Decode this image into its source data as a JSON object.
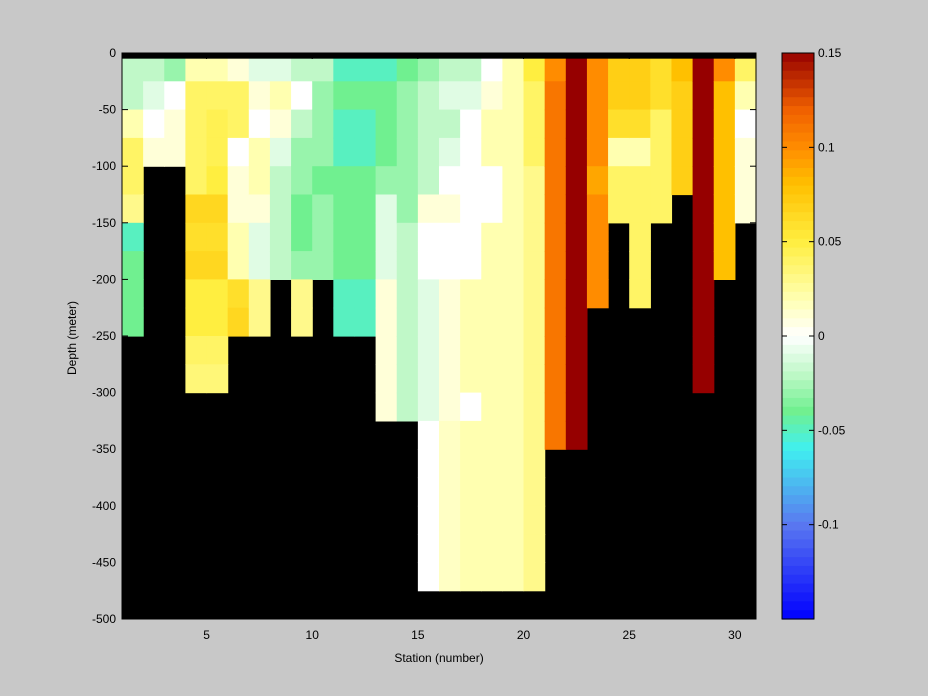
{
  "chart_data": {
    "type": "heatmap",
    "title": "",
    "xlabel": "Station (number)",
    "ylabel": "Depth (meter)",
    "xlim": [
      1,
      31
    ],
    "ylim": [
      -500,
      0
    ],
    "x_ticks": [
      5,
      10,
      15,
      20,
      25,
      30
    ],
    "y_ticks": [
      0,
      -50,
      -100,
      -150,
      -200,
      -250,
      -300,
      -350,
      -400,
      -450,
      -500
    ],
    "cell_height_m": 25,
    "nodata_color": "#000000",
    "colorbar": {
      "clim": [
        -0.15,
        0.15
      ],
      "ticks": [
        -0.1,
        -0.05,
        0,
        0.05,
        0.1,
        0.15
      ],
      "colormap": [
        [
          -0.15,
          "#0000ff"
        ],
        [
          -0.1,
          "#5a78f0"
        ],
        [
          -0.06,
          "#40f0f0"
        ],
        [
          -0.04,
          "#70f090"
        ],
        [
          -0.02,
          "#c0f8c8"
        ],
        [
          0,
          "#ffffff"
        ],
        [
          0.02,
          "#ffffb0"
        ],
        [
          0.05,
          "#ffee40"
        ],
        [
          0.08,
          "#ffc000"
        ],
        [
          0.1,
          "#ff8c00"
        ],
        [
          0.12,
          "#f06000"
        ],
        [
          0.15,
          "#960000"
        ]
      ]
    },
    "top_band": {
      "depth_range": [
        0,
        -5
      ],
      "color": "#000000"
    },
    "stations": [
      {
        "station": 1,
        "cells": [
          -0.02,
          -0.02,
          0.02,
          0.04,
          0.04,
          0.03,
          -0.05,
          -0.04,
          -0.04,
          -0.04
        ]
      },
      {
        "station": 2,
        "cells": [
          -0.02,
          -0.01,
          0.0,
          0.01
        ]
      },
      {
        "station": 3,
        "cells": [
          -0.03,
          0.0,
          0.01,
          0.01
        ]
      },
      {
        "station": 4,
        "cells": [
          0.02,
          0.04,
          0.04,
          0.04,
          0.04,
          0.065,
          0.06,
          0.065,
          0.05,
          0.05,
          0.04,
          0.035
        ]
      },
      {
        "station": 5,
        "cells": [
          0.02,
          0.04,
          0.045,
          0.045,
          0.05,
          0.065,
          0.06,
          0.065,
          0.05,
          0.05,
          0.04,
          0.035
        ]
      },
      {
        "station": 6,
        "cells": [
          0.01,
          0.04,
          0.04,
          0.0,
          0.01,
          0.01,
          0.02,
          0.02,
          0.06,
          0.065
        ]
      },
      {
        "station": 7,
        "cells": [
          -0.01,
          0.01,
          0.0,
          0.02,
          0.02,
          0.01,
          -0.01,
          -0.01,
          0.03,
          0.03
        ]
      },
      {
        "station": 8,
        "cells": [
          -0.01,
          0.02,
          0.01,
          -0.01,
          -0.02,
          -0.02,
          -0.02,
          -0.02
        ]
      },
      {
        "station": 9,
        "cells": [
          -0.02,
          0.0,
          -0.02,
          -0.03,
          -0.03,
          -0.04,
          -0.04,
          -0.03,
          0.03,
          0.03
        ]
      },
      {
        "station": 10,
        "cells": [
          -0.02,
          -0.03,
          -0.03,
          -0.03,
          -0.04,
          -0.03,
          -0.03,
          -0.03
        ]
      },
      {
        "station": 11,
        "cells": [
          -0.05,
          -0.04,
          -0.05,
          -0.05,
          -0.04,
          -0.04,
          -0.04,
          -0.04,
          -0.05,
          -0.05
        ]
      },
      {
        "station": 12,
        "cells": [
          -0.05,
          -0.04,
          -0.05,
          -0.05,
          -0.04,
          -0.04,
          -0.04,
          -0.04,
          -0.05,
          -0.05
        ]
      },
      {
        "station": 13,
        "cells": [
          -0.05,
          -0.04,
          -0.04,
          -0.04,
          -0.03,
          -0.01,
          -0.01,
          -0.01,
          0.01,
          0.01,
          0.01,
          0.01,
          0.01
        ]
      },
      {
        "station": 14,
        "cells": [
          -0.04,
          -0.03,
          -0.03,
          -0.03,
          -0.03,
          -0.03,
          -0.02,
          -0.02,
          -0.02,
          -0.02,
          -0.02,
          -0.02,
          -0.02
        ]
      },
      {
        "station": 15,
        "cells": [
          -0.03,
          -0.02,
          -0.02,
          -0.02,
          -0.02,
          0.01,
          0.0,
          0.0,
          -0.01,
          -0.01,
          -0.01,
          -0.01,
          -0.01,
          0.0,
          0.0,
          0.0,
          0.0,
          0.0,
          0.0
        ]
      },
      {
        "station": 16,
        "cells": [
          -0.02,
          -0.01,
          -0.02,
          -0.01,
          0.0,
          0.01,
          0.0,
          0.0,
          0.01,
          0.01,
          0.01,
          0.01,
          0.01,
          0.015,
          0.015,
          0.015,
          0.015,
          0.015,
          0.015
        ]
      },
      {
        "station": 17,
        "cells": [
          -0.02,
          -0.01,
          0.0,
          0.0,
          0.0,
          0.0,
          0.0,
          0.0,
          0.02,
          0.02,
          0.02,
          0.02,
          0.0,
          0.02,
          0.02,
          0.02,
          0.02,
          0.02,
          0.02
        ]
      },
      {
        "station": 18,
        "cells": [
          0.0,
          0.01,
          0.02,
          0.02,
          0.0,
          0.0,
          0.02,
          0.02,
          0.02,
          0.02,
          0.02,
          0.02,
          0.02,
          0.02,
          0.02,
          0.02,
          0.02,
          0.02,
          0.02
        ]
      },
      {
        "station": 19,
        "cells": [
          0.02,
          0.02,
          0.02,
          0.02,
          0.02,
          0.02,
          0.02,
          0.02,
          0.02,
          0.02,
          0.02,
          0.02,
          0.02,
          0.02,
          0.02,
          0.02,
          0.02,
          0.02,
          0.02
        ]
      },
      {
        "station": 20,
        "cells": [
          0.05,
          0.04,
          0.04,
          0.04,
          0.03,
          0.03,
          0.03,
          0.03,
          0.03,
          0.03,
          0.03,
          0.03,
          0.03,
          0.03,
          0.03,
          0.03,
          0.03,
          0.03,
          0.03
        ]
      },
      {
        "station": 21,
        "cells": [
          0.1,
          0.11,
          0.11,
          0.11,
          0.11,
          0.11,
          0.11,
          0.11,
          0.11,
          0.11,
          0.11,
          0.11,
          0.11,
          0.11
        ]
      },
      {
        "station": 22,
        "cells": [
          0.15,
          0.15,
          0.15,
          0.15,
          0.15,
          0.15,
          0.15,
          0.15,
          0.15,
          0.15,
          0.15,
          0.15,
          0.15,
          0.15
        ]
      },
      {
        "station": 23,
        "cells": [
          0.1,
          0.1,
          0.1,
          0.1,
          0.09,
          0.1,
          0.1,
          0.1,
          0.1
        ]
      },
      {
        "station": 24,
        "cells": [
          0.07,
          0.07,
          0.06,
          0.02,
          0.04,
          0.04
        ]
      },
      {
        "station": 25,
        "cells": [
          0.07,
          0.07,
          0.06,
          0.02,
          0.04,
          0.04,
          0.04,
          0.04,
          0.04
        ]
      },
      {
        "station": 26,
        "cells": [
          0.06,
          0.06,
          0.04,
          0.04,
          0.04,
          0.04
        ]
      },
      {
        "station": 27,
        "cells": [
          0.08,
          0.07,
          0.07,
          0.07,
          0.07
        ]
      },
      {
        "station": 28,
        "cells": [
          0.15,
          0.15,
          0.15,
          0.15,
          0.15,
          0.15,
          0.15,
          0.15,
          0.15,
          0.15,
          0.15,
          0.15
        ]
      },
      {
        "station": 29,
        "cells": [
          0.1,
          0.08,
          0.08,
          0.08,
          0.08,
          0.08,
          0.08,
          0.08
        ]
      },
      {
        "station": 30,
        "cells": [
          0.04,
          0.02,
          0.0,
          0.01,
          0.01,
          0.01
        ]
      }
    ]
  }
}
